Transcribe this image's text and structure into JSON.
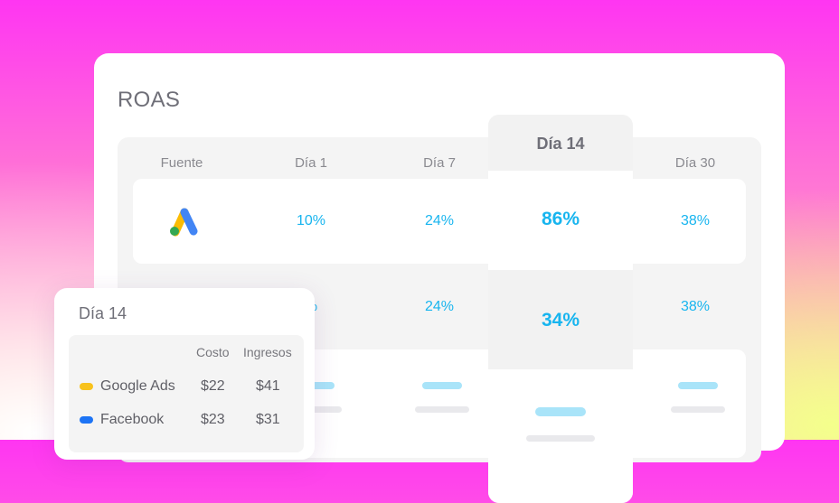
{
  "card": {
    "title": "ROAS"
  },
  "table": {
    "headers": {
      "source": "Fuente",
      "day1": "Día 1",
      "day7": "Día 7",
      "day14": "Día 14",
      "day30": "Día 30"
    },
    "rows": [
      {
        "source_icon": "google-ads-logo",
        "day1": "10%",
        "day7": "24%",
        "day14": "86%",
        "day30": "38%"
      },
      {
        "day1": "%",
        "day7": "24%",
        "day14": "34%",
        "day30": "38%"
      }
    ]
  },
  "popup": {
    "title": "Día 14",
    "headers": {
      "cost": "Costo",
      "revenue": "Ingresos"
    },
    "rows": [
      {
        "source": "Google Ads",
        "color": "#f8c21c",
        "cost": "$22",
        "revenue": "$41"
      },
      {
        "source": "Facebook",
        "color": "#1d74f5",
        "cost": "$23",
        "revenue": "$31"
      }
    ]
  },
  "colors": {
    "accent": "#18b5ef",
    "placeholder": "#a9e4f9"
  }
}
